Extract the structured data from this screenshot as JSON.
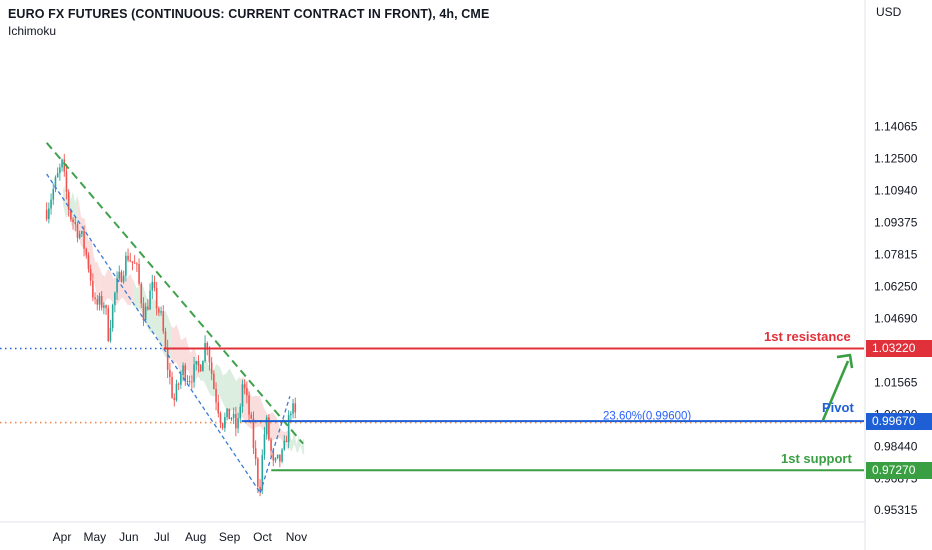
{
  "header": {
    "title": "EURO FX FUTURES (CONTINUOUS: CURRENT CONTRACT IN FRONT), 4h, CME",
    "indicator": "Ichimoku"
  },
  "colors": {
    "up_candle": "#26a69a",
    "down_candle": "#ef5350",
    "trendline": "#3fa24b",
    "channel": "#3a7bd5",
    "resistance": "#e0303a",
    "pivot": "#1e5fd6",
    "support": "#3a9e42",
    "cloud_bull": "#cfe8d6",
    "cloud_bear": "#f8d2d2"
  },
  "chart_data": {
    "type": "candlestick",
    "currency_label": "USD",
    "timeframe": "4h",
    "x_ticks": [
      "Apr",
      "May",
      "Jun",
      "Jul",
      "Aug",
      "Sep",
      "Oct",
      "Nov"
    ],
    "y_ticks": [
      1.14065,
      1.125,
      1.1094,
      1.09375,
      1.07815,
      1.0625,
      1.0469,
      1.01565,
      1.0,
      0.9844,
      0.96875,
      0.95315
    ],
    "ylim": [
      0.9425,
      1.1535
    ],
    "price_path": [
      {
        "date": "Mar 18",
        "price": 1.1,
        "note": "start"
      },
      {
        "date": "Mar 26",
        "price": 1.113
      },
      {
        "date": "Apr 1",
        "price": 1.122
      },
      {
        "date": "Apr 8",
        "price": 1.098
      },
      {
        "date": "Apr 20",
        "price": 1.085
      },
      {
        "date": "Apr 26",
        "price": 1.071
      },
      {
        "date": "May 1",
        "price": 1.053
      },
      {
        "date": "May 10",
        "price": 1.055
      },
      {
        "date": "May 13",
        "price": 1.039
      },
      {
        "date": "May 20",
        "price": 1.061
      },
      {
        "date": "May 31",
        "price": 1.078
      },
      {
        "date": "Jun 8",
        "price": 1.071
      },
      {
        "date": "Jun 15",
        "price": 1.048
      },
      {
        "date": "Jun 22",
        "price": 1.062
      },
      {
        "date": "Jul 1",
        "price": 1.046
      },
      {
        "date": "Jul 5",
        "price": 1.028
      },
      {
        "date": "Jul 12",
        "price": 1.006
      },
      {
        "date": "Jul 20",
        "price": 1.022
      },
      {
        "date": "Jul 26",
        "price": 1.018
      },
      {
        "date": "Aug 5",
        "price": 1.024
      },
      {
        "date": "Aug 11",
        "price": 1.037
      },
      {
        "date": "Aug 18",
        "price": 1.012
      },
      {
        "date": "Aug 25",
        "price": 0.996
      },
      {
        "date": "Sep 2",
        "price": 1.0
      },
      {
        "date": "Sep 8",
        "price": 0.992
      },
      {
        "date": "Sep 13",
        "price": 1.016
      },
      {
        "date": "Sep 20",
        "price": 0.997
      },
      {
        "date": "Sep 28",
        "price": 0.962
      },
      {
        "date": "Oct 4",
        "price": 0.998
      },
      {
        "date": "Oct 11",
        "price": 0.974
      },
      {
        "date": "Oct 20",
        "price": 0.98
      },
      {
        "date": "Oct 27",
        "price": 1.004
      },
      {
        "date": "Nov 1",
        "price": 0.997
      }
    ],
    "ichimoku_cloud": [
      {
        "date": "Apr 2",
        "top": 1.11,
        "bottom": 1.1,
        "sentiment": "bull"
      },
      {
        "date": "Apr 15",
        "top": 1.105,
        "bottom": 1.09,
        "sentiment": "bear"
      },
      {
        "date": "May 5",
        "top": 1.07,
        "bottom": 1.055,
        "sentiment": "bear"
      },
      {
        "date": "Jun 5",
        "top": 1.066,
        "bottom": 1.055,
        "sentiment": "bull"
      },
      {
        "date": "Jul 10",
        "top": 1.045,
        "bottom": 1.025,
        "sentiment": "bear"
      },
      {
        "date": "Aug 5",
        "top": 1.026,
        "bottom": 1.016,
        "sentiment": "bull"
      },
      {
        "date": "Sep 10",
        "top": 1.018,
        "bottom": 0.998,
        "sentiment": "bear"
      },
      {
        "date": "Oct 25",
        "top": 0.99,
        "bottom": 0.984,
        "sentiment": "bull"
      }
    ],
    "levels": [
      {
        "name": "1st resistance",
        "label": "1st resistance",
        "value": 1.0322,
        "value_label": "1.03220",
        "color": "#e0303a"
      },
      {
        "name": "Pivot",
        "label": "Pivot",
        "value": 0.9967,
        "value_label": "0.99670",
        "color": "#1e5fd6"
      },
      {
        "name": "1st support",
        "label": "1st support",
        "value": 0.9727,
        "value_label": "0.97270",
        "color": "#3a9e42"
      }
    ],
    "fib_annotation": "23.60%(0.99600)",
    "trendlines": [
      {
        "name": "descending trendline",
        "style": "dashed",
        "color": "#3fa24b",
        "from": {
          "date": "Mar 18",
          "price": 1.1328
        },
        "to": {
          "date": "Nov 7",
          "price": 0.9857
        }
      },
      {
        "name": "lower channel",
        "style": "dashed",
        "color": "#3a7bd5",
        "from": {
          "date": "Mar 18",
          "price": 1.1175
        },
        "to": {
          "date": "Sep 29",
          "price": 0.9617
        }
      },
      {
        "name": "rising line",
        "style": "dashed",
        "color": "#3a7bd5",
        "from": {
          "date": "Sep 29",
          "price": 0.9617
        },
        "to": {
          "date": "Oct 26",
          "price": 1.0088
        }
      }
    ],
    "dotted_references": [
      {
        "value": 1.0322,
        "color": "#1e5fd6"
      },
      {
        "value": 0.996,
        "color": "#f08a45"
      }
    ]
  }
}
